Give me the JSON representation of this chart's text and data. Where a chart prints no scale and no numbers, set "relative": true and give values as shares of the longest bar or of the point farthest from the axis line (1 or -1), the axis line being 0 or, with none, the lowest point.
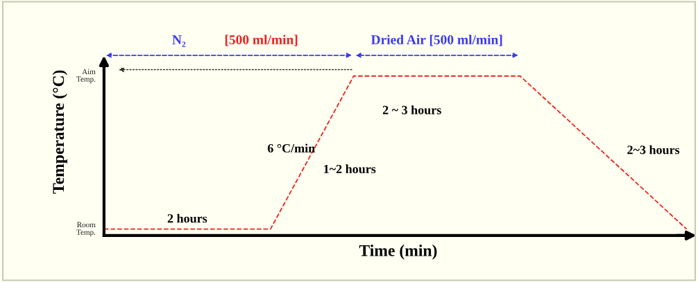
{
  "chart_data": {
    "type": "line",
    "relative": true,
    "xlabel": "Time (min)",
    "ylabel": "Temperature (°C)",
    "categories": [
      null,
      null,
      null,
      null,
      null,
      null,
      null,
      null
    ],
    "series": [
      {
        "color": "#e8251e",
        "values": [
          0.04,
          0.04,
          0.04,
          1,
          1,
          1,
          0.52,
          0.04
        ]
      }
    ],
    "line_style": "dashed",
    "marker": "none",
    "grid": false,
    "legend": false,
    "annotations": [
      "N₂",
      "[500 ml/min]",
      "Dried Air [500 ml/min]",
      "2 hours",
      "6 °C/min",
      "1~2 hours",
      "2 ~ 3 hours",
      "2~3 hours",
      "Room\nTemp.",
      "Aim\nTemp."
    ]
  }
}
